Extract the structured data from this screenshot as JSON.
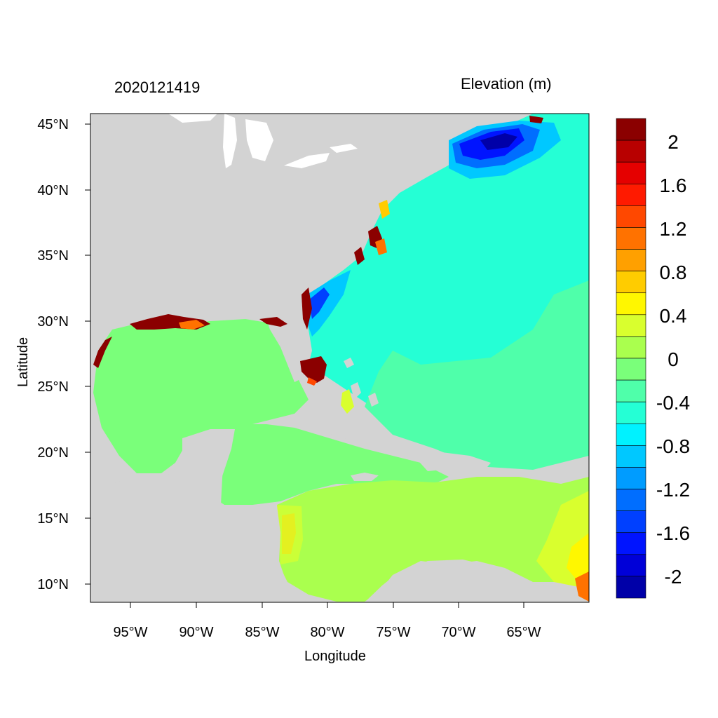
{
  "header": {
    "timestamp": "2020121419",
    "variable": "Elevation (m)"
  },
  "axes": {
    "xlabel": "Longitude",
    "ylabel": "Latitude",
    "xticks": [
      "95°W",
      "90°W",
      "85°W",
      "80°W",
      "75°W",
      "70°W",
      "65°W"
    ],
    "yticks": [
      "45°N",
      "40°N",
      "35°N",
      "30°N",
      "25°N",
      "20°N",
      "15°N",
      "10°N"
    ]
  },
  "colorbar": {
    "labels": [
      "2",
      "1.6",
      "1.2",
      "0.8",
      "0.4",
      "0",
      "-0.4",
      "-0.8",
      "-1.2",
      "-1.6",
      "-2"
    ],
    "colors": [
      "#8b0000",
      "#b80000",
      "#e50000",
      "#ff1a00",
      "#ff4800",
      "#ff7200",
      "#ffa000",
      "#ffcc00",
      "#fff700",
      "#d9ff2e",
      "#aaff4e",
      "#7aff7a",
      "#4fffaa",
      "#25ffd5",
      "#00f2ff",
      "#00c8ff",
      "#009cff",
      "#006eff",
      "#0040ff",
      "#0014ff",
      "#0000d8",
      "#0000a8"
    ]
  },
  "map": {
    "land_color": "#d3d3d3",
    "ocean_colors": {
      "gulf": "#7aff7a",
      "atlantic": "#25ffd5",
      "atlantic_south": "#4fffaa",
      "caribbean": "#aaff4e",
      "gulf_of_maine": "#0014ff",
      "florida_surge": "#8b0000"
    }
  }
}
